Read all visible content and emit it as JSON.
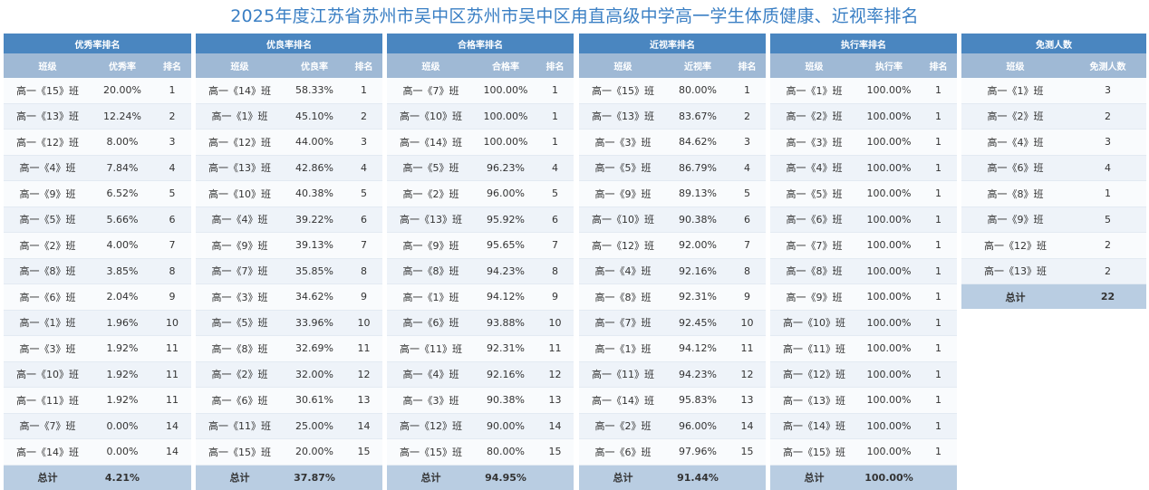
{
  "page_title": "2025年度江苏省苏州市吴中区苏州市吴中区甪直高级中学高一学生体质健康、近视率排名",
  "tables": [
    {
      "title": "优秀率排名",
      "headers": [
        "班级",
        "优秀率",
        "排名"
      ],
      "rows": [
        [
          "高一《15》班",
          "20.00%",
          "1"
        ],
        [
          "高一《13》班",
          "12.24%",
          "2"
        ],
        [
          "高一《12》班",
          "8.00%",
          "3"
        ],
        [
          "高一《4》班",
          "7.84%",
          "4"
        ],
        [
          "高一《9》班",
          "6.52%",
          "5"
        ],
        [
          "高一《5》班",
          "5.66%",
          "6"
        ],
        [
          "高一《2》班",
          "4.00%",
          "7"
        ],
        [
          "高一《8》班",
          "3.85%",
          "8"
        ],
        [
          "高一《6》班",
          "2.04%",
          "9"
        ],
        [
          "高一《1》班",
          "1.96%",
          "10"
        ],
        [
          "高一《3》班",
          "1.92%",
          "11"
        ],
        [
          "高一《10》班",
          "1.92%",
          "11"
        ],
        [
          "高一《11》班",
          "1.92%",
          "11"
        ],
        [
          "高一《7》班",
          "0.00%",
          "14"
        ],
        [
          "高一《14》班",
          "0.00%",
          "14"
        ]
      ],
      "total": [
        "总计",
        "4.21%",
        ""
      ]
    },
    {
      "title": "优良率排名",
      "headers": [
        "班级",
        "优良率",
        "排名"
      ],
      "rows": [
        [
          "高一《14》班",
          "58.33%",
          "1"
        ],
        [
          "高一《1》班",
          "45.10%",
          "2"
        ],
        [
          "高一《12》班",
          "44.00%",
          "3"
        ],
        [
          "高一《13》班",
          "42.86%",
          "4"
        ],
        [
          "高一《10》班",
          "40.38%",
          "5"
        ],
        [
          "高一《4》班",
          "39.22%",
          "6"
        ],
        [
          "高一《9》班",
          "39.13%",
          "7"
        ],
        [
          "高一《7》班",
          "35.85%",
          "8"
        ],
        [
          "高一《3》班",
          "34.62%",
          "9"
        ],
        [
          "高一《5》班",
          "33.96%",
          "10"
        ],
        [
          "高一《8》班",
          "32.69%",
          "11"
        ],
        [
          "高一《2》班",
          "32.00%",
          "12"
        ],
        [
          "高一《6》班",
          "30.61%",
          "13"
        ],
        [
          "高一《11》班",
          "25.00%",
          "14"
        ],
        [
          "高一《15》班",
          "20.00%",
          "15"
        ]
      ],
      "total": [
        "总计",
        "37.87%",
        ""
      ]
    },
    {
      "title": "合格率排名",
      "headers": [
        "班级",
        "合格率",
        "排名"
      ],
      "rows": [
        [
          "高一《7》班",
          "100.00%",
          "1"
        ],
        [
          "高一《10》班",
          "100.00%",
          "1"
        ],
        [
          "高一《14》班",
          "100.00%",
          "1"
        ],
        [
          "高一《5》班",
          "96.23%",
          "4"
        ],
        [
          "高一《2》班",
          "96.00%",
          "5"
        ],
        [
          "高一《13》班",
          "95.92%",
          "6"
        ],
        [
          "高一《9》班",
          "95.65%",
          "7"
        ],
        [
          "高一《8》班",
          "94.23%",
          "8"
        ],
        [
          "高一《1》班",
          "94.12%",
          "9"
        ],
        [
          "高一《6》班",
          "93.88%",
          "10"
        ],
        [
          "高一《11》班",
          "92.31%",
          "11"
        ],
        [
          "高一《4》班",
          "92.16%",
          "12"
        ],
        [
          "高一《3》班",
          "90.38%",
          "13"
        ],
        [
          "高一《12》班",
          "90.00%",
          "14"
        ],
        [
          "高一《15》班",
          "80.00%",
          "15"
        ]
      ],
      "total": [
        "总计",
        "94.95%",
        ""
      ]
    },
    {
      "title": "近视率排名",
      "headers": [
        "班级",
        "近视率",
        "排名"
      ],
      "rows": [
        [
          "高一《15》班",
          "80.00%",
          "1"
        ],
        [
          "高一《13》班",
          "83.67%",
          "2"
        ],
        [
          "高一《3》班",
          "84.62%",
          "3"
        ],
        [
          "高一《5》班",
          "86.79%",
          "4"
        ],
        [
          "高一《9》班",
          "89.13%",
          "5"
        ],
        [
          "高一《10》班",
          "90.38%",
          "6"
        ],
        [
          "高一《12》班",
          "92.00%",
          "7"
        ],
        [
          "高一《4》班",
          "92.16%",
          "8"
        ],
        [
          "高一《8》班",
          "92.31%",
          "9"
        ],
        [
          "高一《7》班",
          "92.45%",
          "10"
        ],
        [
          "高一《1》班",
          "94.12%",
          "11"
        ],
        [
          "高一《11》班",
          "94.23%",
          "12"
        ],
        [
          "高一《14》班",
          "95.83%",
          "13"
        ],
        [
          "高一《2》班",
          "96.00%",
          "14"
        ],
        [
          "高一《6》班",
          "97.96%",
          "15"
        ]
      ],
      "total": [
        "总计",
        "91.44%",
        ""
      ]
    },
    {
      "title": "执行率排名",
      "headers": [
        "班级",
        "执行率",
        "排名"
      ],
      "rows": [
        [
          "高一《1》班",
          "100.00%",
          "1"
        ],
        [
          "高一《2》班",
          "100.00%",
          "1"
        ],
        [
          "高一《3》班",
          "100.00%",
          "1"
        ],
        [
          "高一《4》班",
          "100.00%",
          "1"
        ],
        [
          "高一《5》班",
          "100.00%",
          "1"
        ],
        [
          "高一《6》班",
          "100.00%",
          "1"
        ],
        [
          "高一《7》班",
          "100.00%",
          "1"
        ],
        [
          "高一《8》班",
          "100.00%",
          "1"
        ],
        [
          "高一《9》班",
          "100.00%",
          "1"
        ],
        [
          "高一《10》班",
          "100.00%",
          "1"
        ],
        [
          "高一《11》班",
          "100.00%",
          "1"
        ],
        [
          "高一《12》班",
          "100.00%",
          "1"
        ],
        [
          "高一《13》班",
          "100.00%",
          "1"
        ],
        [
          "高一《14》班",
          "100.00%",
          "1"
        ],
        [
          "高一《15》班",
          "100.00%",
          "1"
        ]
      ],
      "total": [
        "总计",
        "100.00%",
        ""
      ]
    },
    {
      "title": "免测人数",
      "headers": [
        "班级",
        "免测人数"
      ],
      "rows": [
        [
          "高一《1》班",
          "3"
        ],
        [
          "高一《2》班",
          "2"
        ],
        [
          "高一《4》班",
          "3"
        ],
        [
          "高一《6》班",
          "4"
        ],
        [
          "高一《8》班",
          "1"
        ],
        [
          "高一《9》班",
          "5"
        ],
        [
          "高一《12》班",
          "2"
        ],
        [
          "高一《13》班",
          "2"
        ]
      ],
      "total": [
        "总计",
        "22"
      ]
    }
  ]
}
